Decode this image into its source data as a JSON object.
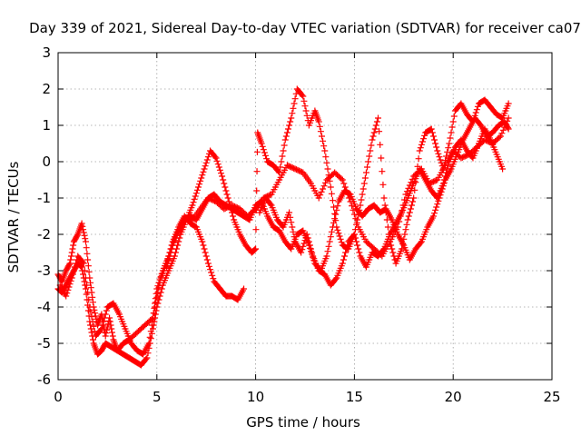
{
  "chart_data": {
    "type": "scatter",
    "title": "Day 339 of 2021, Sidereal Day-to-day VTEC variation (SDTVAR) for receiver ca07",
    "xlabel": "GPS time / hours",
    "ylabel": "SDTVAR / TECUs",
    "xlim": [
      0,
      25
    ],
    "ylim": [
      -6,
      3
    ],
    "xticks": [
      "0",
      "5",
      "10",
      "15",
      "20",
      "25"
    ],
    "yticks": [
      "-6",
      "-5",
      "-4",
      "-3",
      "-2",
      "-1",
      "0",
      "1",
      "2",
      "3"
    ],
    "grid": true,
    "marker": "+",
    "color": "#ff0000",
    "series": [
      {
        "points": [
          [
            0.0,
            -3.1
          ],
          [
            0.2,
            -3.3
          ],
          [
            0.4,
            -3.0
          ],
          [
            0.6,
            -2.8
          ],
          [
            0.8,
            -2.2
          ],
          [
            1.0,
            -2.0
          ],
          [
            1.2,
            -1.7
          ],
          [
            1.4,
            -2.2
          ],
          [
            1.6,
            -3.2
          ],
          [
            1.8,
            -4.0
          ],
          [
            2.0,
            -4.5
          ],
          [
            2.2,
            -4.2
          ],
          [
            2.4,
            -4.8
          ],
          [
            2.6,
            -4.3
          ],
          [
            2.8,
            -4.9
          ],
          [
            3.0,
            -5.2
          ],
          [
            3.3,
            -5.0
          ],
          [
            3.6,
            -4.9
          ],
          [
            4.0,
            -4.7
          ],
          [
            4.4,
            -4.5
          ],
          [
            4.8,
            -4.3
          ],
          [
            5.0,
            -3.5
          ],
          [
            5.3,
            -3.0
          ],
          [
            5.6,
            -2.6
          ],
          [
            6.0,
            -2.0
          ],
          [
            6.4,
            -1.6
          ],
          [
            6.8,
            -1.6
          ],
          [
            7.2,
            -1.3
          ],
          [
            7.6,
            -1.0
          ],
          [
            8.0,
            -1.1
          ],
          [
            8.4,
            -1.3
          ],
          [
            8.8,
            -1.2
          ],
          [
            9.2,
            -1.3
          ],
          [
            9.6,
            -1.5
          ],
          [
            10.0,
            -1.3
          ],
          [
            10.4,
            -1.0
          ],
          [
            10.8,
            -0.9
          ],
          [
            11.2,
            -0.5
          ],
          [
            11.6,
            -0.1
          ],
          [
            12.0,
            -0.2
          ],
          [
            12.4,
            -0.3
          ],
          [
            12.8,
            -0.6
          ],
          [
            13.2,
            -1.0
          ],
          [
            13.6,
            -0.5
          ],
          [
            14.0,
            -0.3
          ],
          [
            14.4,
            -0.5
          ],
          [
            14.8,
            -1.1
          ],
          [
            15.2,
            -1.8
          ],
          [
            15.6,
            -2.2
          ],
          [
            16.0,
            -2.4
          ],
          [
            16.4,
            -2.6
          ],
          [
            16.8,
            -2.2
          ],
          [
            17.2,
            -1.8
          ],
          [
            17.6,
            -0.9
          ],
          [
            18.0,
            -0.4
          ],
          [
            18.4,
            -0.2
          ],
          [
            18.8,
            -0.6
          ],
          [
            19.2,
            -0.5
          ],
          [
            19.6,
            -0.1
          ],
          [
            20.0,
            0.3
          ],
          [
            20.4,
            0.1
          ],
          [
            20.8,
            0.2
          ],
          [
            21.2,
            0.4
          ],
          [
            21.6,
            0.6
          ],
          [
            22.0,
            0.5
          ],
          [
            22.4,
            0.7
          ],
          [
            22.8,
            1.2
          ]
        ]
      },
      {
        "points": [
          [
            0.0,
            -3.5
          ],
          [
            0.2,
            -3.6
          ],
          [
            0.4,
            -3.4
          ],
          [
            0.6,
            -3.2
          ],
          [
            0.8,
            -3.0
          ],
          [
            1.0,
            -2.8
          ],
          [
            1.2,
            -2.9
          ],
          [
            1.4,
            -3.5
          ],
          [
            1.6,
            -4.4
          ],
          [
            1.8,
            -5.0
          ],
          [
            2.0,
            -5.3
          ],
          [
            2.2,
            -5.2
          ],
          [
            2.4,
            -5.0
          ],
          [
            2.7,
            -5.1
          ],
          [
            3.0,
            -5.2
          ],
          [
            3.3,
            -5.3
          ],
          [
            3.6,
            -5.4
          ],
          [
            3.9,
            -5.5
          ],
          [
            4.2,
            -5.6
          ],
          [
            4.5,
            -5.4
          ],
          [
            4.8,
            -4.6
          ],
          [
            5.0,
            -4.0
          ],
          [
            5.3,
            -3.4
          ],
          [
            5.6,
            -3.0
          ],
          [
            5.9,
            -2.6
          ],
          [
            6.2,
            -2.0
          ],
          [
            6.5,
            -1.6
          ],
          [
            6.8,
            -1.2
          ],
          [
            7.1,
            -0.7
          ],
          [
            7.4,
            -0.2
          ],
          [
            7.7,
            0.3
          ],
          [
            8.0,
            0.1
          ],
          [
            8.3,
            -0.4
          ],
          [
            8.6,
            -1.0
          ],
          [
            8.9,
            -1.6
          ],
          [
            9.2,
            -2.0
          ],
          [
            9.5,
            -2.3
          ],
          [
            9.8,
            -2.5
          ],
          [
            10.0,
            -2.4
          ],
          [
            10.1,
            0.8
          ],
          [
            10.3,
            0.5
          ],
          [
            10.6,
            0.0
          ],
          [
            10.9,
            -0.1
          ],
          [
            11.2,
            -0.3
          ],
          [
            11.5,
            0.6
          ],
          [
            11.8,
            1.2
          ],
          [
            12.1,
            2.0
          ],
          [
            12.4,
            1.8
          ],
          [
            12.7,
            1.0
          ],
          [
            13.0,
            1.4
          ],
          [
            13.2,
            1.1
          ],
          [
            13.5,
            0.3
          ],
          [
            13.8,
            -0.7
          ],
          [
            14.1,
            -1.8
          ],
          [
            14.4,
            -2.3
          ],
          [
            14.7,
            -2.4
          ],
          [
            15.0,
            -2.0
          ],
          [
            15.3,
            -1.2
          ],
          [
            15.6,
            -0.3
          ],
          [
            15.9,
            0.6
          ],
          [
            16.2,
            1.2
          ],
          [
            16.5,
            -1.0
          ],
          [
            16.8,
            -2.2
          ],
          [
            17.1,
            -2.8
          ],
          [
            17.4,
            -2.4
          ],
          [
            17.7,
            -1.6
          ],
          [
            18.0,
            -1.0
          ],
          [
            18.3,
            0.3
          ],
          [
            18.6,
            0.8
          ],
          [
            18.9,
            0.9
          ],
          [
            19.2,
            0.3
          ],
          [
            19.5,
            -0.2
          ],
          [
            19.8,
            0.5
          ],
          [
            20.1,
            1.4
          ],
          [
            20.4,
            1.6
          ],
          [
            20.7,
            1.3
          ],
          [
            21.0,
            1.1
          ],
          [
            21.3,
            1.6
          ],
          [
            21.6,
            1.7
          ],
          [
            21.9,
            1.5
          ],
          [
            22.2,
            1.3
          ],
          [
            22.5,
            1.2
          ],
          [
            22.8,
            1.6
          ]
        ]
      },
      {
        "points": [
          [
            0.1,
            -3.4
          ],
          [
            0.4,
            -3.7
          ],
          [
            0.7,
            -3.2
          ],
          [
            1.0,
            -2.6
          ],
          [
            1.3,
            -2.8
          ],
          [
            1.6,
            -4.0
          ],
          [
            1.9,
            -4.8
          ],
          [
            2.2,
            -4.6
          ],
          [
            2.5,
            -4.0
          ],
          [
            2.8,
            -3.9
          ],
          [
            3.1,
            -4.2
          ],
          [
            3.4,
            -4.6
          ],
          [
            3.7,
            -5.0
          ],
          [
            4.0,
            -5.2
          ],
          [
            4.3,
            -5.3
          ],
          [
            4.6,
            -5.0
          ],
          [
            4.9,
            -4.0
          ],
          [
            5.2,
            -3.2
          ],
          [
            5.5,
            -2.8
          ],
          [
            5.8,
            -2.2
          ],
          [
            6.1,
            -1.8
          ],
          [
            6.4,
            -1.5
          ],
          [
            6.7,
            -1.7
          ],
          [
            7.0,
            -1.8
          ],
          [
            7.3,
            -2.2
          ],
          [
            7.6,
            -2.8
          ],
          [
            7.9,
            -3.3
          ],
          [
            8.2,
            -3.5
          ],
          [
            8.5,
            -3.7
          ],
          [
            8.8,
            -3.7
          ],
          [
            9.1,
            -3.8
          ],
          [
            9.4,
            -3.5
          ],
          [
            10.2,
            -1.4
          ],
          [
            10.5,
            -1.0
          ],
          [
            10.8,
            -1.2
          ],
          [
            11.1,
            -1.6
          ],
          [
            11.4,
            -1.8
          ],
          [
            11.7,
            -1.4
          ],
          [
            12.0,
            -2.2
          ],
          [
            12.3,
            -2.5
          ],
          [
            12.6,
            -2.0
          ],
          [
            12.9,
            -2.6
          ],
          [
            13.2,
            -3.0
          ],
          [
            13.5,
            -3.1
          ],
          [
            13.8,
            -3.4
          ],
          [
            14.1,
            -3.2
          ],
          [
            14.4,
            -2.8
          ],
          [
            14.7,
            -2.2
          ],
          [
            15.0,
            -2.0
          ],
          [
            15.3,
            -2.6
          ],
          [
            15.6,
            -2.9
          ],
          [
            15.9,
            -2.5
          ],
          [
            16.2,
            -2.6
          ],
          [
            16.5,
            -2.4
          ],
          [
            16.8,
            -2.0
          ],
          [
            17.1,
            -1.7
          ],
          [
            17.4,
            -1.4
          ],
          [
            17.7,
            -1.0
          ],
          [
            18.0,
            -0.6
          ],
          [
            18.3,
            -0.2
          ],
          [
            18.6,
            -0.5
          ],
          [
            18.9,
            -0.8
          ],
          [
            19.2,
            -1.0
          ],
          [
            19.5,
            -0.6
          ],
          [
            19.8,
            0.0
          ],
          [
            20.1,
            0.4
          ],
          [
            20.4,
            0.6
          ],
          [
            20.7,
            0.3
          ],
          [
            21.0,
            0.1
          ],
          [
            21.3,
            0.5
          ],
          [
            21.6,
            0.9
          ],
          [
            21.9,
            0.6
          ],
          [
            22.2,
            0.2
          ],
          [
            22.5,
            -0.2
          ]
        ]
      },
      {
        "points": [
          [
            5.5,
            -2.9
          ],
          [
            5.8,
            -2.3
          ],
          [
            6.1,
            -1.9
          ],
          [
            6.4,
            -1.6
          ],
          [
            6.7,
            -1.5
          ],
          [
            7.0,
            -1.6
          ],
          [
            7.3,
            -1.3
          ],
          [
            7.6,
            -1.0
          ],
          [
            7.9,
            -0.9
          ],
          [
            8.2,
            -1.1
          ],
          [
            8.5,
            -1.2
          ],
          [
            8.8,
            -1.3
          ],
          [
            9.1,
            -1.4
          ],
          [
            9.4,
            -1.5
          ],
          [
            9.7,
            -1.6
          ],
          [
            10.0,
            -1.2
          ],
          [
            10.3,
            -1.1
          ],
          [
            10.6,
            -1.5
          ],
          [
            10.9,
            -1.8
          ],
          [
            11.2,
            -1.9
          ],
          [
            11.5,
            -2.2
          ],
          [
            11.8,
            -2.4
          ],
          [
            12.1,
            -2.0
          ],
          [
            12.4,
            -1.9
          ],
          [
            12.7,
            -2.3
          ],
          [
            13.0,
            -2.8
          ],
          [
            13.3,
            -3.0
          ],
          [
            13.6,
            -2.6
          ],
          [
            13.9,
            -1.8
          ],
          [
            14.2,
            -1.1
          ],
          [
            14.5,
            -0.8
          ],
          [
            14.8,
            -0.9
          ],
          [
            15.1,
            -1.3
          ],
          [
            15.4,
            -1.5
          ],
          [
            15.7,
            -1.3
          ],
          [
            16.0,
            -1.2
          ],
          [
            16.3,
            -1.4
          ],
          [
            16.6,
            -1.3
          ],
          [
            16.9,
            -1.6
          ],
          [
            17.2,
            -2.0
          ],
          [
            17.5,
            -2.3
          ],
          [
            17.8,
            -2.7
          ],
          [
            18.1,
            -2.4
          ],
          [
            18.4,
            -2.2
          ],
          [
            18.7,
            -1.8
          ],
          [
            19.0,
            -1.5
          ],
          [
            19.3,
            -1.0
          ],
          [
            19.6,
            -0.5
          ],
          [
            19.9,
            -0.2
          ],
          [
            20.2,
            0.2
          ],
          [
            20.5,
            0.6
          ],
          [
            20.8,
            0.9
          ],
          [
            21.1,
            1.2
          ],
          [
            21.4,
            1.0
          ],
          [
            21.7,
            0.7
          ],
          [
            22.0,
            0.8
          ],
          [
            22.3,
            1.0
          ],
          [
            22.6,
            1.1
          ],
          [
            22.8,
            0.9
          ]
        ]
      }
    ]
  }
}
